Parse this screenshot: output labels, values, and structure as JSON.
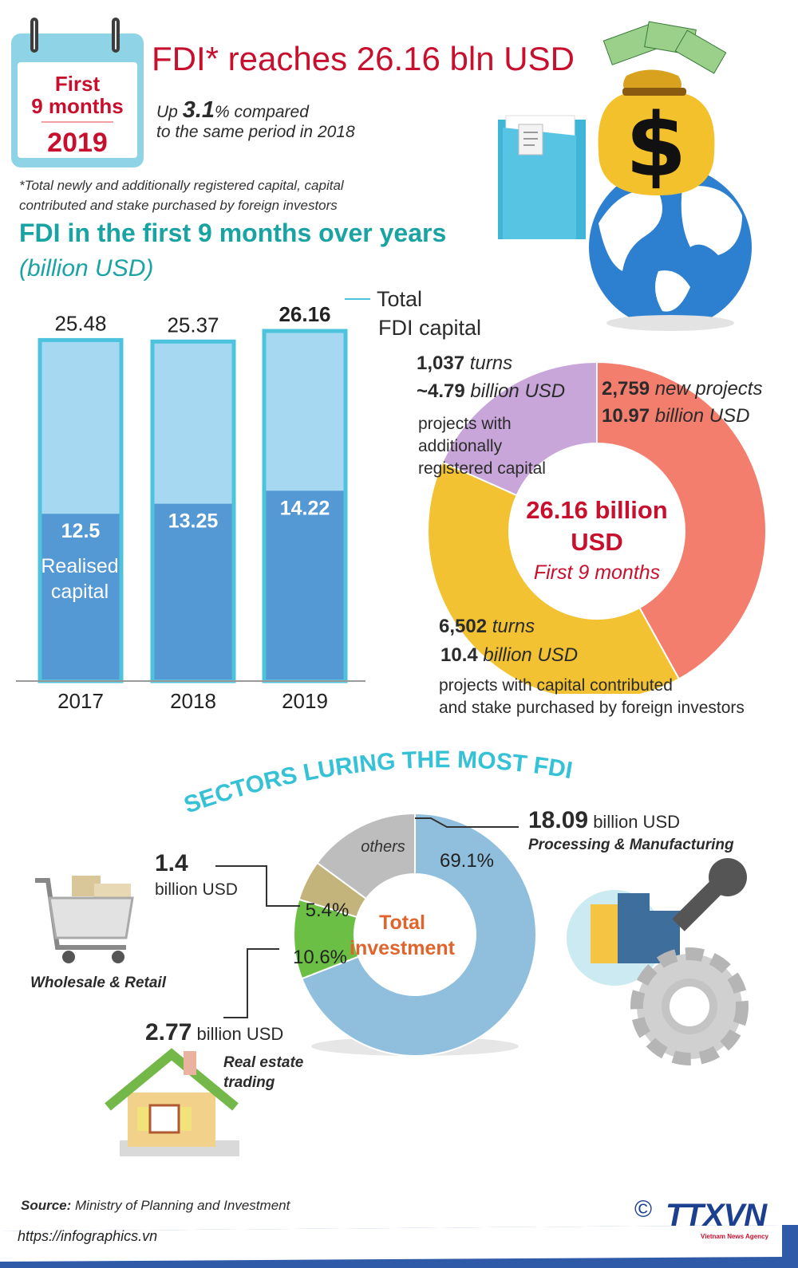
{
  "header": {
    "calendar_line1": "First",
    "calendar_line2": "9 months",
    "calendar_year": "2019",
    "title": "FDI* reaches 26.16 bln USD",
    "growth_prefix": "Up ",
    "growth_value": "3.1",
    "growth_suffix": "% compared",
    "growth_line2": "to the same period in 2018",
    "footnote_line1": "*Total newly and additionally registered capital, capital",
    "footnote_line2": "contributed and stake purchased by foreign investors"
  },
  "section1": {
    "title": "FDI in the first 9 months over years",
    "unit": "(billion USD)"
  },
  "sectors_title": "SECTORS LURING THE MOST FDI",
  "footer": {
    "source_label": "Source:",
    "source_text": " Ministry of Planning and Investment",
    "url": "https://infographics.vn",
    "copyright": "©",
    "logo": "TTXVN",
    "logo_sub": "Vietnam News Agency"
  },
  "colors": {
    "red": "#c8102e",
    "teal": "#1aa3a3",
    "bar_light": "#a6d9f1",
    "bar_dark": "#5599d4",
    "bar_border": "#4dc3dd"
  },
  "chart_data": [
    {
      "type": "bar",
      "categories": [
        "2017",
        "2018",
        "2019"
      ],
      "series": [
        {
          "name": "Total FDI capital",
          "values": [
            25.48,
            25.37,
            26.16
          ]
        },
        {
          "name": "Realised capital",
          "values": [
            12.5,
            13.25,
            14.22
          ]
        }
      ],
      "total_label_line1": "Total",
      "total_label_line2": "FDI capital",
      "realised_label_line1": "Realised",
      "realised_label_line2": "capital",
      "value_labels_total": [
        "25.48",
        "25.37",
        "26.16"
      ],
      "value_labels_realised": [
        "12.5",
        "13.25",
        "14.22"
      ],
      "ylim": [
        0,
        27
      ]
    },
    {
      "type": "pie",
      "center_line1": "26.16 billion",
      "center_line2": "USD",
      "center_line3": "First 9 months",
      "slices": [
        {
          "value": 10.97,
          "count": "2,759",
          "count_label": " new projects",
          "amount": "10.97",
          "amount_label": " billion USD",
          "desc": ""
        },
        {
          "value": 10.4,
          "count": "6,502",
          "count_label": " turns",
          "amount": "10.4",
          "amount_label": " billion USD",
          "desc_line1": "projects with capital contributed",
          "desc_line2": "and stake purchased by foreign investors"
        },
        {
          "value": 4.79,
          "count": "1,037",
          "count_label": " turns",
          "amount": "~4.79",
          "amount_label": " billion USD",
          "desc_line1": "projects with",
          "desc_line2": "additionally",
          "desc_line3": "registered capital"
        }
      ],
      "colors": [
        "#f47e6e",
        "#f2c233",
        "#c9a6d9"
      ]
    },
    {
      "type": "pie",
      "center_line1": "Total",
      "center_line2": "investment",
      "slices": [
        {
          "name": "Processing & Manufacturing",
          "value": 69.1,
          "label": "69.1%",
          "amount": "18.09",
          "unit": " billion USD"
        },
        {
          "name": "Real estate trading",
          "value": 10.6,
          "label": "10.6%",
          "amount": "2.77",
          "unit": " billion USD",
          "name_line1": "Real estate",
          "name_line2": "trading"
        },
        {
          "name": "Wholesale & Retail",
          "value": 5.4,
          "label": "5.4%",
          "amount": "1.4",
          "unit": "billion USD"
        },
        {
          "name": "others",
          "value": 14.9,
          "label": "others"
        }
      ],
      "colors": [
        "#8fbfdc",
        "#6cbf45",
        "#c2b47a",
        "#bdbdbd"
      ]
    }
  ]
}
